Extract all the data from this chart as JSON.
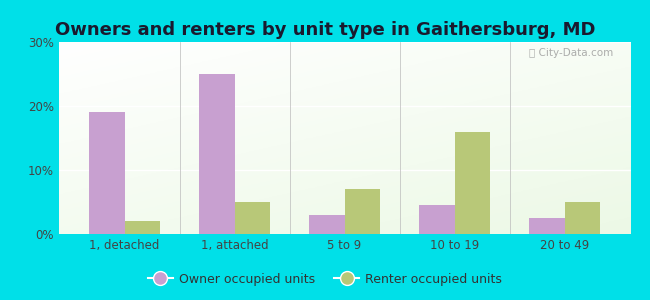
{
  "title": "Owners and renters by unit type in Gaithersburg, MD",
  "categories": [
    "1, detached",
    "1, attached",
    "5 to 9",
    "10 to 19",
    "20 to 49"
  ],
  "owner_values": [
    19.0,
    25.0,
    3.0,
    4.5,
    2.5
  ],
  "renter_values": [
    2.0,
    5.0,
    7.0,
    16.0,
    5.0
  ],
  "owner_color": "#c8a0d0",
  "renter_color": "#b8c878",
  "ylim": [
    0,
    30
  ],
  "yticks": [
    0,
    10,
    20,
    30
  ],
  "ytick_labels": [
    "0%",
    "10%",
    "20%",
    "30%"
  ],
  "background_outer": "#00e0e8",
  "title_fontsize": 13,
  "tick_fontsize": 8.5,
  "legend_fontsize": 9,
  "bar_width": 0.32,
  "watermark": "ⓘ City-Data.com",
  "owner_label": "Owner occupied units",
  "renter_label": "Renter occupied units"
}
